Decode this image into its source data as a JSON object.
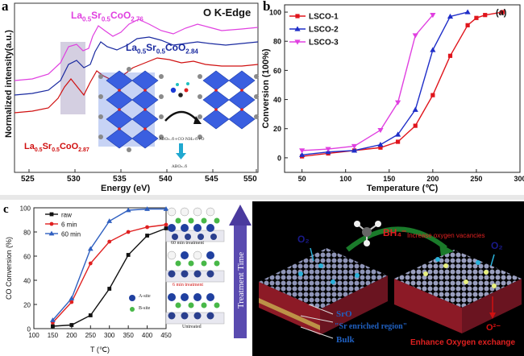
{
  "panel_a": {
    "label": "a",
    "edge_label": "O K-Edge",
    "ylabel": "Normalized intensity(a.u.)",
    "xlabel": "Energy (eV)",
    "x_ticks": [
      "525",
      "530",
      "535",
      "540",
      "545",
      "550"
    ],
    "curve_labels": [
      {
        "base": "La",
        "s1": "0.5",
        "el": "Sr",
        "s2": "0.5",
        "tail": "CoO",
        "s3": "2.76",
        "color": "#e040e0"
      },
      {
        "base": "La",
        "s1": "0.5",
        "el": "Sr",
        "s2": "0.5",
        "tail": "CoO",
        "s3": "2.84",
        "color": "#1a2aa0"
      },
      {
        "base": "La",
        "s1": "0.5",
        "el": "Sr",
        "s2": "0.5",
        "tail": "CoO",
        "s3": "2.87",
        "color": "#d01010"
      }
    ],
    "inset_formula": "ABO₃₋δ+CO·NH₂·δ+O",
    "inset_formula2": "ABO₃₋δ"
  },
  "panel_b": {
    "label": "b",
    "tag": "(a)",
    "chart_data": {
      "type": "line",
      "xlabel": "Temperature (℃)",
      "ylabel": "Conversion (100%)",
      "xlim": [
        30,
        300
      ],
      "ylim": [
        -10,
        105
      ],
      "x_ticks": [
        50,
        100,
        150,
        200,
        250,
        300
      ],
      "y_ticks": [
        0,
        20,
        40,
        60,
        80,
        100
      ],
      "series": [
        {
          "name": "LSCO-1",
          "color": "#e0151c",
          "marker": "square",
          "x": [
            50,
            80,
            110,
            140,
            160,
            180,
            200,
            220,
            240,
            250,
            260,
            280
          ],
          "y": [
            1,
            3,
            5,
            7,
            11,
            22,
            43,
            70,
            91,
            96,
            98,
            100
          ]
        },
        {
          "name": "LSCO-2",
          "color": "#1f2ec8",
          "marker": "triangle-up",
          "x": [
            50,
            80,
            110,
            140,
            160,
            180,
            200,
            220,
            240
          ],
          "y": [
            2,
            4,
            5,
            9,
            16,
            33,
            74,
            97,
            100
          ]
        },
        {
          "name": "LSCO-3",
          "color": "#e040e0",
          "marker": "triangle-down",
          "x": [
            50,
            80,
            110,
            140,
            160,
            180,
            200
          ],
          "y": [
            5,
            6,
            8,
            19,
            38,
            84,
            98
          ]
        }
      ]
    }
  },
  "panel_c": {
    "label": "c",
    "chart_data": {
      "type": "line",
      "xlabel": "T (℃)",
      "ylabel": "CO Conversion (%)",
      "xlim": [
        100,
        450
      ],
      "ylim": [
        0,
        100
      ],
      "x_ticks": [
        100,
        150,
        200,
        250,
        300,
        350,
        400,
        450
      ],
      "y_ticks": [
        0,
        20,
        40,
        60,
        80,
        100
      ],
      "series": [
        {
          "name": "raw",
          "color": "#111111",
          "marker": "square",
          "x": [
            150,
            200,
            250,
            300,
            350,
            400,
            450
          ],
          "y": [
            2,
            3,
            11,
            33,
            61,
            77,
            83
          ]
        },
        {
          "name": "6 min",
          "color": "#e02020",
          "marker": "circle",
          "x": [
            150,
            200,
            250,
            300,
            350,
            400,
            450
          ],
          "y": [
            5,
            22,
            54,
            72,
            80,
            84,
            86
          ]
        },
        {
          "name": "60 min",
          "color": "#3060c0",
          "marker": "triangle-up",
          "x": [
            150,
            200,
            250,
            300,
            350,
            400,
            450
          ],
          "y": [
            7,
            25,
            66,
            89,
            98,
            99,
            99
          ]
        }
      ]
    },
    "schematic": {
      "label_60": "60 min treatment",
      "label_6": "6 min treatment",
      "label_untreated": "Untreated",
      "legend_a": "A-site",
      "legend_b": "B-site",
      "arrow_label": "Treatment Time"
    }
  },
  "panel_d": {
    "reagent": "BH₄⁻",
    "caption": "Increase oxygen vacancies",
    "o2_left": "O₂",
    "o2_right": "O₂",
    "o2_minus": "O²⁻",
    "sro": "SrO",
    "sr_region": "\"Sr enriched region\"",
    "bulk": "Bulk",
    "exchange": "Enhance  Oxygen  exchange"
  }
}
